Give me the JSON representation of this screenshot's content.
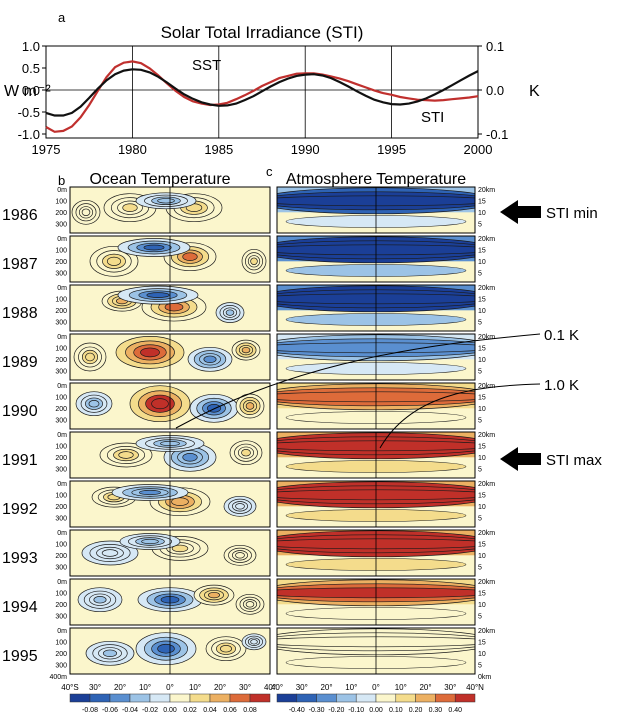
{
  "chart_data": [
    {
      "type": "line",
      "panel_letter": "a",
      "title": "Solar Total Irradiance (STI)",
      "left_axis_label": "W m⁻²",
      "right_axis_label": "K",
      "x_ticks": [
        1975,
        1980,
        1985,
        1990,
        1995,
        2000
      ],
      "left_ticks": [
        "1.0",
        "0.5",
        "0.0",
        "-0.5",
        "-1.0"
      ],
      "right_ticks": [
        "0.1",
        "0.0",
        "-0.1"
      ],
      "xlim": [
        1975,
        2000
      ],
      "ylim_left": [
        -1.0,
        1.0
      ],
      "ylim_right": [
        -0.1,
        0.1
      ],
      "series": [
        {
          "name": "SST",
          "axis": "right",
          "color": "#c0302e",
          "x": [
            1975,
            1975.5,
            1976,
            1976.5,
            1977,
            1977.5,
            1978,
            1978.5,
            1979,
            1979.5,
            1980,
            1980.5,
            1981,
            1981.5,
            1982,
            1982.5,
            1983,
            1983.5,
            1984,
            1984.5,
            1985,
            1985.5,
            1986,
            1986.5,
            1987,
            1987.5,
            1988,
            1988.5,
            1989,
            1989.5,
            1990,
            1990.5,
            1991,
            1991.5,
            1992,
            1992.5,
            1993,
            1993.5,
            1994,
            1994.5,
            1995,
            1995.5,
            1996,
            1996.5,
            1997,
            1997.5,
            1998,
            1998.5,
            1999,
            1999.5,
            2000
          ],
          "values": [
            -0.084,
            -0.095,
            -0.093,
            -0.083,
            -0.062,
            -0.034,
            -0.002,
            0.029,
            0.052,
            0.062,
            0.065,
            0.061,
            0.049,
            0.033,
            0.015,
            -0.002,
            -0.016,
            -0.026,
            -0.031,
            -0.034,
            -0.033,
            -0.029,
            -0.021,
            -0.012,
            -0.002,
            0.009,
            0.018,
            0.027,
            0.032,
            0.037,
            0.038,
            0.038,
            0.035,
            0.031,
            0.026,
            0.02,
            0.013,
            0.006,
            -0.001,
            -0.007,
            -0.011,
            -0.016,
            -0.019,
            -0.022,
            -0.023,
            -0.024,
            -0.023,
            -0.021,
            -0.019,
            -0.017,
            -0.014
          ]
        },
        {
          "name": "STI",
          "axis": "left",
          "color": "#111111",
          "x": [
            1975,
            1975.5,
            1976,
            1976.5,
            1977,
            1977.5,
            1978,
            1978.5,
            1979,
            1979.5,
            1980,
            1980.5,
            1981,
            1981.5,
            1982,
            1982.5,
            1983,
            1983.5,
            1984,
            1984.5,
            1985,
            1985.5,
            1986,
            1986.5,
            1987,
            1987.5,
            1988,
            1988.5,
            1989,
            1989.5,
            1990,
            1990.5,
            1991,
            1991.5,
            1992,
            1992.5,
            1993,
            1993.5,
            1994,
            1994.5,
            1995,
            1995.5,
            1996,
            1996.5,
            1997,
            1997.5,
            1998,
            1998.5,
            1999,
            1999.5,
            2000
          ],
          "values": [
            -0.52,
            -0.58,
            -0.58,
            -0.52,
            -0.38,
            -0.18,
            0.03,
            0.22,
            0.36,
            0.44,
            0.47,
            0.46,
            0.4,
            0.3,
            0.17,
            0.03,
            -0.1,
            -0.2,
            -0.28,
            -0.33,
            -0.36,
            -0.35,
            -0.31,
            -0.23,
            -0.14,
            -0.03,
            0.08,
            0.18,
            0.26,
            0.32,
            0.35,
            0.36,
            0.33,
            0.27,
            0.18,
            0.08,
            -0.03,
            -0.13,
            -0.22,
            -0.28,
            -0.32,
            -0.33,
            -0.31,
            -0.26,
            -0.19,
            -0.1,
            0.0,
            0.11,
            0.22,
            0.33,
            0.43
          ]
        }
      ],
      "annotations": [
        "SST",
        "STI"
      ]
    },
    {
      "type": "heatmap",
      "panel_letter": "b",
      "title": "Ocean Temperature",
      "years": [
        "1986",
        "1987",
        "1988",
        "1989",
        "1990",
        "1991",
        "1992",
        "1993",
        "1994",
        "1995"
      ],
      "depth_ticks": [
        "0m",
        "100",
        "200",
        "300",
        "400m"
      ],
      "x_ticks": [
        "40°S",
        "30°",
        "20°",
        "10°",
        "0°",
        "10°",
        "20°",
        "30°",
        "40°"
      ],
      "colorbar_levels": [
        "-0.08",
        "-0.06",
        "-0.04",
        "-0.02",
        "0.00",
        "0.02",
        "0.04",
        "0.06",
        "0.08"
      ],
      "colorbar_unit": "K",
      "anomaly_amplitude_k": [
        0.04,
        0.06,
        0.07,
        0.08,
        0.09,
        0.06,
        0.05,
        0.03,
        0.05,
        0.06
      ]
    },
    {
      "type": "heatmap",
      "panel_letter": "c",
      "title": "Atmosphere Temperature",
      "years": [
        "1986",
        "1987",
        "1988",
        "1989",
        "1990",
        "1991",
        "1992",
        "1993",
        "1994",
        "1995"
      ],
      "height_ticks": [
        "20km",
        "15",
        "10",
        "5",
        "0km"
      ],
      "x_ticks": [
        "40°",
        "30°",
        "20°",
        "10°",
        "0°",
        "10°",
        "20°",
        "30°",
        "40°N"
      ],
      "colorbar_levels": [
        "-0.40",
        "-0.30",
        "-0.20",
        "-0.10",
        "0.00",
        "0.10",
        "0.20",
        "0.30",
        "0.40"
      ],
      "colorbar_unit": "K",
      "upper_level_anomaly_k": [
        -0.3,
        -0.38,
        -0.4,
        -0.15,
        0.2,
        0.38,
        0.36,
        0.38,
        0.25,
        0.0
      ],
      "annotations": [
        {
          "label": "STI min",
          "year": "1986"
        },
        {
          "label": "0.1 K",
          "year": "1989"
        },
        {
          "label": "1.0 K",
          "year": "1990"
        },
        {
          "label": "STI max",
          "year": "1991"
        }
      ]
    }
  ],
  "palette": [
    "#1b3f97",
    "#2e63b5",
    "#5a8fd0",
    "#9cc3e6",
    "#d6e8f5",
    "#fbf6cc",
    "#f4dc8c",
    "#ecb062",
    "#dd6b3a",
    "#c03029"
  ]
}
